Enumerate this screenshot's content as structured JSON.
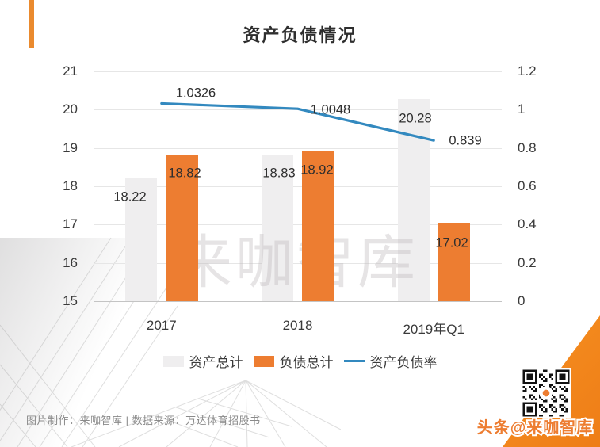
{
  "title": "资产负债情况",
  "watermark": "来咖智库",
  "footer": {
    "credit": "图片制作：来咖智库 | 数据来源：万达体育招股书",
    "social": "头条@来咖智库"
  },
  "colors": {
    "bar_gray": "#EFEEEF",
    "bar_orange": "#ED7D31",
    "line_blue": "#3389BF",
    "triangle_orange": "#F5851F",
    "accent_orange": "#EA8A2E",
    "gridline": "#E6E6E6",
    "axis_baseline": "#C4C4C4",
    "text_dark": "#3A3A3A",
    "footer_gray": "#8A8A8A",
    "watermark_gray": "#E2E0E0"
  },
  "chart_data": {
    "type": "bar",
    "subtype": "combo-bar-line-dual-axis",
    "title": "资产负债情况",
    "categories": [
      "2017",
      "2018",
      "2019年Q1"
    ],
    "series": [
      {
        "name": "资产总计",
        "kind": "bar",
        "axis": "left",
        "color": "#EFEEEF",
        "values": [
          18.22,
          18.83,
          20.28
        ],
        "labels": [
          "18.22",
          "18.83",
          "20.28"
        ]
      },
      {
        "name": "负债总计",
        "kind": "bar",
        "axis": "left",
        "color": "#ED7D31",
        "values": [
          18.82,
          18.92,
          17.02
        ],
        "labels": [
          "18.82",
          "18.92",
          "17.02"
        ]
      },
      {
        "name": "资产负债率",
        "kind": "line",
        "axis": "right",
        "color": "#3389BF",
        "values": [
          1.0326,
          1.0048,
          0.839
        ],
        "labels": [
          "1.0326",
          "1.0048",
          "0.839"
        ]
      }
    ],
    "left_axis": {
      "min": 15,
      "max": 21,
      "ticks": [
        "21",
        "20",
        "19",
        "18",
        "17",
        "16",
        "15"
      ]
    },
    "right_axis": {
      "min": 0,
      "max": 1.2,
      "ticks": [
        "1.2",
        "1",
        "0.8",
        "0.6",
        "0.4",
        "0.2",
        "0"
      ]
    },
    "legend_position": "bottom",
    "grid": true
  }
}
